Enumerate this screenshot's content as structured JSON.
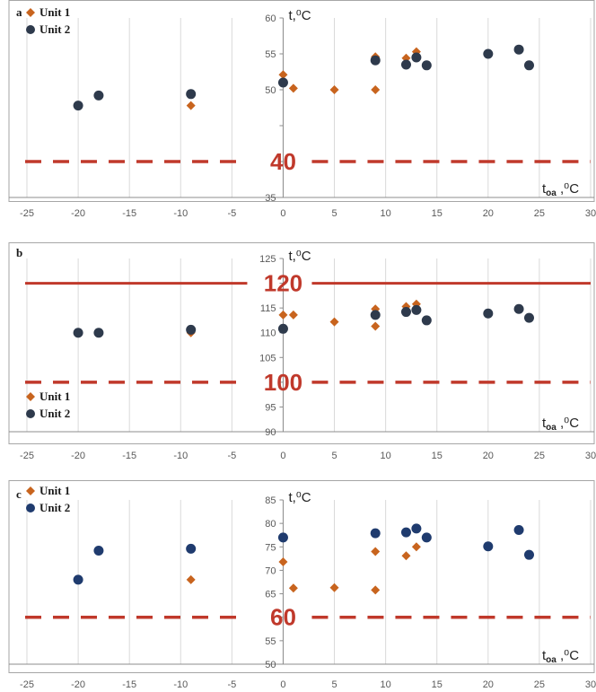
{
  "chart_data": [
    {
      "type": "scatter",
      "panel_label": "a",
      "xlabel": "t",
      "xlabel_sub": "oa",
      "xlabel_unit": ",⁰C",
      "ylabel": "t,⁰C",
      "xlim": [
        -25,
        30
      ],
      "ylim": [
        35,
        60
      ],
      "xticks": [
        -25,
        -20,
        -15,
        -10,
        -5,
        0,
        5,
        10,
        15,
        20,
        25,
        30
      ],
      "xtick_labels": [
        "-25",
        "-20",
        "-15",
        "-10",
        "-5",
        "0",
        "5",
        "10",
        "15",
        "20",
        "25",
        "30"
      ],
      "yticks": [
        35,
        40,
        45,
        50,
        55,
        60
      ],
      "ytick_labels": [
        "35",
        "",
        "",
        "50",
        "55",
        "60"
      ],
      "legend_position": "top-left",
      "series": [
        {
          "name": "Unit 1",
          "marker": "diamond",
          "color": "#c8641e",
          "x": [
            -9,
            0,
            1,
            5,
            9,
            9,
            12,
            13
          ],
          "y": [
            47.8,
            52.1,
            50.2,
            50.0,
            54.6,
            50.0,
            54.4,
            55.3
          ]
        },
        {
          "name": "Unit 2",
          "marker": "circle",
          "color": "#2e3a4c",
          "x": [
            -20,
            -18,
            -9,
            0,
            9,
            12,
            13,
            14,
            20,
            23,
            24
          ],
          "y": [
            47.8,
            49.2,
            49.4,
            51.0,
            54.1,
            53.5,
            54.5,
            53.4,
            55.0,
            55.6,
            53.4
          ]
        }
      ],
      "reference_lines": [
        {
          "value": 40,
          "label": "40",
          "style": "dashed",
          "color": "#c0392b"
        }
      ]
    },
    {
      "type": "scatter",
      "panel_label": "b",
      "xlabel": "t",
      "xlabel_sub": "oa",
      "xlabel_unit": ",⁰C",
      "ylabel": "t,⁰C",
      "xlim": [
        -25,
        30
      ],
      "ylim": [
        90,
        125
      ],
      "xticks": [
        -25,
        -20,
        -15,
        -10,
        -5,
        0,
        5,
        10,
        15,
        20,
        25,
        30
      ],
      "xtick_labels": [
        "-25",
        "-20",
        "-15",
        "-10",
        "-5",
        "0",
        "5",
        "10",
        "15",
        "20",
        "25",
        "30"
      ],
      "yticks": [
        90,
        95,
        100,
        105,
        110,
        115,
        120,
        125
      ],
      "ytick_labels": [
        "90",
        "95",
        "",
        "105",
        "110",
        "115",
        "",
        "125"
      ],
      "legend_position": "bottom-left",
      "series": [
        {
          "name": "Unit 1",
          "marker": "diamond",
          "color": "#c8641e",
          "x": [
            -9,
            0,
            1,
            5,
            9,
            9,
            12,
            13
          ],
          "y": [
            110.0,
            113.6,
            113.6,
            112.2,
            114.8,
            111.3,
            115.3,
            115.8
          ]
        },
        {
          "name": "Unit 2",
          "marker": "circle",
          "color": "#2e3a4c",
          "x": [
            -20,
            -18,
            -9,
            0,
            9,
            12,
            13,
            14,
            20,
            23,
            24
          ],
          "y": [
            110.0,
            110.0,
            110.6,
            110.8,
            113.6,
            114.2,
            114.6,
            112.5,
            113.9,
            114.8,
            113.0
          ]
        }
      ],
      "reference_lines": [
        {
          "value": 120,
          "label": "120",
          "style": "solid",
          "color": "#c0392b"
        },
        {
          "value": 100,
          "label": "100",
          "style": "dashed",
          "color": "#c0392b"
        }
      ]
    },
    {
      "type": "scatter",
      "panel_label": "c",
      "xlabel": "t",
      "xlabel_sub": "oa",
      "xlabel_unit": ",⁰C",
      "ylabel": "t,⁰C",
      "xlim": [
        -25,
        30
      ],
      "ylim": [
        50,
        85
      ],
      "xticks": [
        -25,
        -20,
        -15,
        -10,
        -5,
        0,
        5,
        10,
        15,
        20,
        25,
        30
      ],
      "xtick_labels": [
        "-25",
        "-20",
        "-15",
        "-10",
        "-5",
        "0",
        "5",
        "10",
        "15",
        "20",
        "25",
        "30"
      ],
      "yticks": [
        50,
        55,
        60,
        65,
        70,
        75,
        80,
        85
      ],
      "ytick_labels": [
        "50",
        "55",
        "",
        "65",
        "70",
        "75",
        "80",
        "85"
      ],
      "legend_position": "top-left",
      "series": [
        {
          "name": "Unit 1",
          "marker": "diamond",
          "color": "#c8641e",
          "x": [
            -9,
            0,
            1,
            5,
            9,
            9,
            12,
            13
          ],
          "y": [
            68.0,
            71.8,
            66.2,
            66.3,
            74.0,
            65.8,
            73.1,
            75.0
          ]
        },
        {
          "name": "Unit 2",
          "marker": "circle",
          "color": "#1f3b6e",
          "x": [
            -20,
            -18,
            -9,
            0,
            9,
            12,
            13,
            14,
            20,
            23,
            24
          ],
          "y": [
            68.0,
            74.2,
            74.6,
            77.0,
            77.9,
            78.1,
            78.9,
            77.0,
            75.1,
            78.6,
            73.3
          ]
        }
      ],
      "reference_lines": [
        {
          "value": 60,
          "label": "60",
          "style": "dashed",
          "color": "#c0392b"
        }
      ]
    }
  ]
}
